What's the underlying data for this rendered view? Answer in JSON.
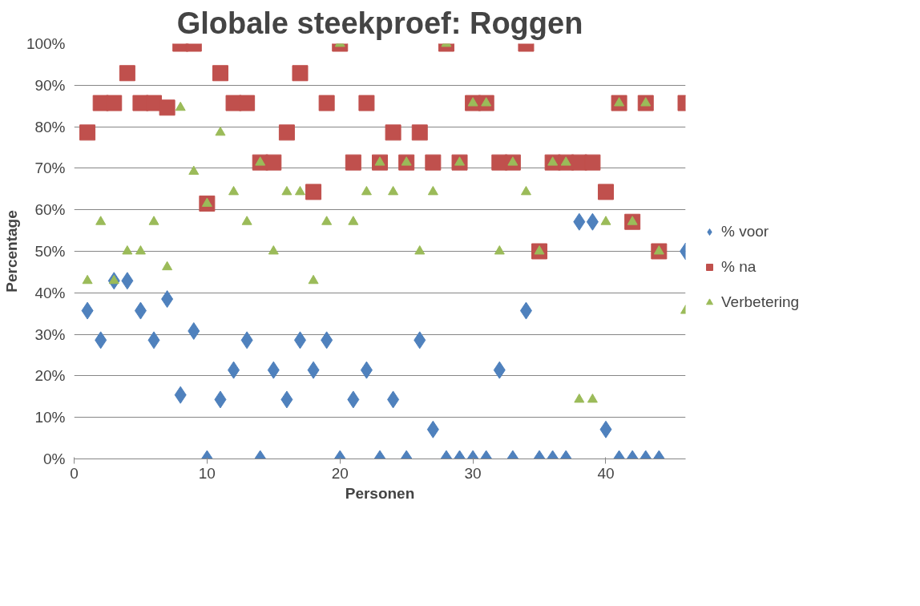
{
  "chart_data": {
    "type": "scatter",
    "title": "Globale steekproef: Roggen",
    "xlabel": "Personen",
    "ylabel": "Percentage",
    "x": [
      1,
      2,
      3,
      4,
      5,
      6,
      7,
      8,
      9,
      10,
      11,
      12,
      13,
      14,
      15,
      16,
      17,
      18,
      19,
      20,
      21,
      22,
      23,
      24,
      25,
      26,
      27,
      28,
      29,
      30,
      31,
      32,
      33,
      34,
      35,
      36,
      37,
      38,
      39,
      40,
      41,
      42,
      43,
      44,
      45,
      46
    ],
    "series": [
      {
        "name": "% voor",
        "color": "#4f81bd",
        "marker": "diamond",
        "values": [
          35.7,
          28.6,
          42.9,
          42.9,
          35.7,
          28.6,
          38.5,
          15.4,
          30.8,
          0,
          14.3,
          21.4,
          28.6,
          0,
          21.4,
          14.3,
          28.6,
          21.4,
          28.6,
          0,
          14.3,
          21.4,
          0,
          14.3,
          0,
          28.6,
          7.1,
          0,
          0,
          0,
          0,
          21.4,
          0,
          35.7,
          0,
          0,
          0,
          57.1,
          57.1,
          7.1,
          0,
          0,
          0,
          0,
          null,
          50
        ]
      },
      {
        "name": "% na",
        "color": "#c0504d",
        "marker": "square",
        "values": [
          78.6,
          85.7,
          85.7,
          92.9,
          85.7,
          85.7,
          84.6,
          100,
          100,
          61.5,
          92.9,
          85.7,
          85.7,
          71.4,
          71.4,
          78.6,
          92.9,
          64.3,
          85.7,
          100,
          71.4,
          85.7,
          71.4,
          78.6,
          71.4,
          78.6,
          71.4,
          100,
          71.4,
          85.7,
          85.7,
          71.4,
          71.4,
          100,
          50,
          71.4,
          71.4,
          71.4,
          71.4,
          64.3,
          85.7,
          57.1,
          85.7,
          50,
          null,
          85.7
        ]
      },
      {
        "name": "Verbetering",
        "color": "#9bbb59",
        "marker": "triangle",
        "values": [
          42.9,
          57.1,
          42.9,
          50,
          50,
          57.1,
          46.2,
          84.6,
          69.2,
          61.5,
          78.6,
          64.3,
          57.1,
          71.4,
          50,
          64.3,
          64.3,
          42.9,
          57.1,
          100,
          57.1,
          64.3,
          71.4,
          64.3,
          71.4,
          50,
          64.3,
          100,
          71.4,
          85.7,
          85.7,
          50,
          71.4,
          64.3,
          50,
          71.4,
          71.4,
          14.3,
          14.3,
          57.1,
          85.7,
          57.1,
          85.7,
          50,
          null,
          35.7
        ]
      }
    ],
    "xlim": [
      0,
      46
    ],
    "xticks": [
      0,
      10,
      20,
      30,
      40
    ],
    "ylim": [
      0,
      100
    ],
    "yticks": [
      {
        "value": 0,
        "label": "0%"
      },
      {
        "value": 10,
        "label": "10%"
      },
      {
        "value": 20,
        "label": "20%"
      },
      {
        "value": 30,
        "label": "30%"
      },
      {
        "value": 40,
        "label": "40%"
      },
      {
        "value": 50,
        "label": "50%"
      },
      {
        "value": 60,
        "label": "60%"
      },
      {
        "value": 70,
        "label": "70%"
      },
      {
        "value": 80,
        "label": "80%"
      },
      {
        "value": 90,
        "label": "90%"
      },
      {
        "value": 100,
        "label": "100%"
      }
    ],
    "grid": "y",
    "legend": "right"
  }
}
